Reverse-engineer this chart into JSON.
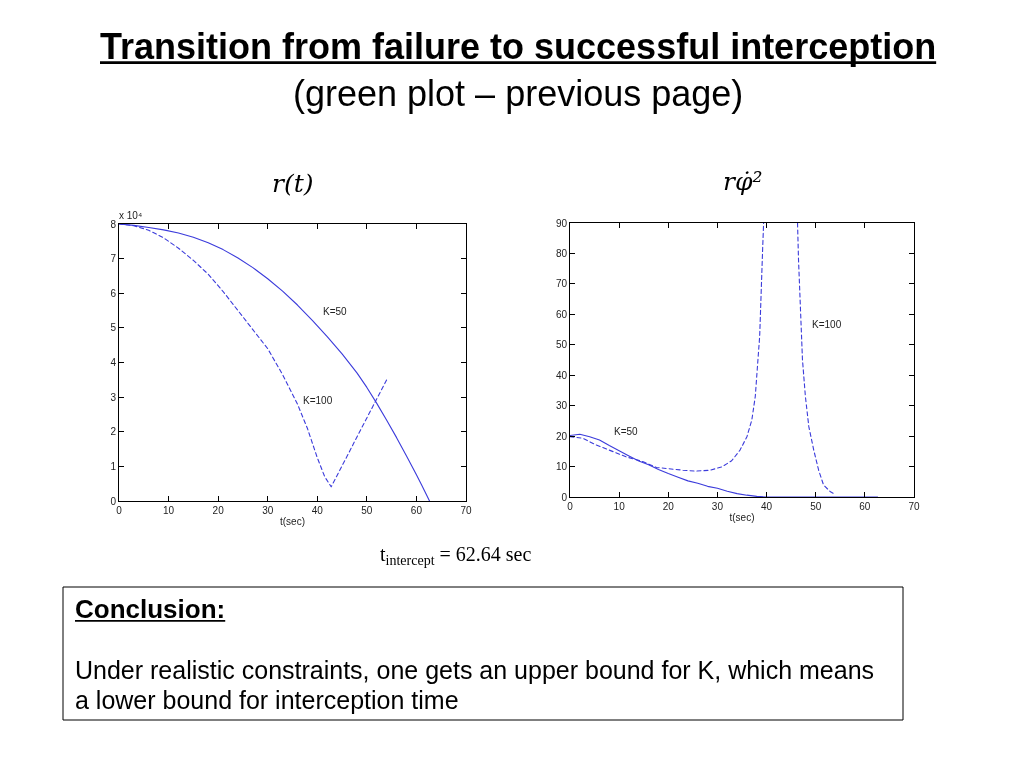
{
  "chart_data": [
    {
      "type": "other",
      "title": "Transition from failure to successful interception",
      "subtitle": "(green plot – previous page)"
    },
    {
      "type": "line",
      "title": "r(t)",
      "xlabel": "t(sec)",
      "ylabel": "x 10⁴",
      "xlim": [
        0,
        70
      ],
      "xticks": [
        0,
        10,
        20,
        30,
        40,
        50,
        60,
        70
      ],
      "ylim": [
        0,
        8
      ],
      "yticks": [
        0,
        1,
        2,
        3,
        4,
        5,
        6,
        7,
        8
      ],
      "series": [
        {
          "name": "K=50",
          "color": "#3b3bdb",
          "line_style": "solid",
          "x": [
            0,
            3,
            6,
            9,
            12,
            15,
            18,
            21,
            24,
            27,
            30,
            33,
            36,
            39,
            42,
            45,
            48,
            50,
            52,
            54,
            56,
            58,
            60,
            61,
            62,
            62.64
          ],
          "values": [
            8.0,
            7.96,
            7.9,
            7.83,
            7.74,
            7.62,
            7.46,
            7.26,
            7.02,
            6.74,
            6.42,
            6.06,
            5.66,
            5.22,
            4.75,
            4.25,
            3.7,
            3.28,
            2.82,
            2.33,
            1.83,
            1.3,
            0.76,
            0.48,
            0.19,
            0
          ]
        },
        {
          "name": "K=100",
          "color": "#3b3bdb",
          "line_style": "dashed",
          "x": [
            0,
            3,
            6,
            9,
            12,
            15,
            18,
            21,
            24,
            27,
            30,
            33,
            36,
            38,
            40,
            41.5,
            42.8,
            44,
            46,
            48,
            50,
            52,
            54
          ],
          "values": [
            8.0,
            7.95,
            7.82,
            7.6,
            7.3,
            6.95,
            6.55,
            6.05,
            5.5,
            4.95,
            4.4,
            3.65,
            2.8,
            2.1,
            1.25,
            0.7,
            0.41,
            0.74,
            1.29,
            1.85,
            2.4,
            2.95,
            3.5
          ]
        }
      ],
      "annotations": [
        "t$_{intercept}$ = 62.64 sec"
      ]
    },
    {
      "type": "line",
      "title": "rφ̇²",
      "xlabel": "t(sec)",
      "xlim": [
        0,
        70
      ],
      "xticks": [
        0,
        10,
        20,
        30,
        40,
        50,
        60,
        70
      ],
      "ylim": [
        0,
        90
      ],
      "yticks": [
        0,
        10,
        20,
        30,
        40,
        50,
        60,
        70,
        80,
        90
      ],
      "series": [
        {
          "name": "K=50",
          "color": "#3b3bdb",
          "line_style": "solid",
          "x": [
            0,
            2,
            4,
            6,
            8,
            10,
            12,
            14,
            16,
            18,
            20,
            22,
            24,
            26,
            28,
            30,
            32,
            34,
            36,
            38,
            40,
            45,
            50,
            55,
            60,
            62.6
          ],
          "values": [
            20.2,
            20.6,
            19.8,
            18.7,
            16.9,
            15.2,
            13.5,
            11.8,
            10.6,
            9.0,
            7.7,
            6.5,
            5.3,
            4.5,
            3.5,
            2.9,
            1.9,
            1.1,
            0.6,
            0.2,
            0,
            0,
            0,
            0,
            0,
            0
          ]
        },
        {
          "name": "K=100",
          "color": "#3b3bdb",
          "line_style": "dashed",
          "x": [
            0,
            2.6,
            5.3,
            8,
            11.4,
            14.9,
            17.6,
            20,
            23,
            25.7,
            28.5,
            30.9,
            32.9,
            34.6,
            36,
            37,
            37.7,
            38.1,
            38.6,
            38.9,
            39.2,
            39.4,
            43,
            46.3,
            46.5,
            46.9,
            47.3,
            47.9,
            48.6,
            49.6,
            50.6,
            51.6,
            53,
            53.7
          ],
          "values": [
            19.8,
            19.3,
            17.1,
            15.4,
            13.2,
            11.6,
            9.7,
            9.3,
            8.8,
            8.5,
            8.8,
            9.9,
            11.9,
            15.4,
            19.8,
            25.3,
            33,
            41.9,
            52.9,
            67.2,
            81.5,
            90,
            null,
            90,
            78,
            61.7,
            45.2,
            33,
            23.1,
            15.4,
            8.8,
            3.9,
            1.7,
            1.1
          ]
        }
      ]
    },
    {
      "type": "other",
      "title": "Conclusion:",
      "annotations": [
        "Under realistic constraints, one gets an upper bound for K, which means a lower bound for interception time"
      ]
    }
  ]
}
